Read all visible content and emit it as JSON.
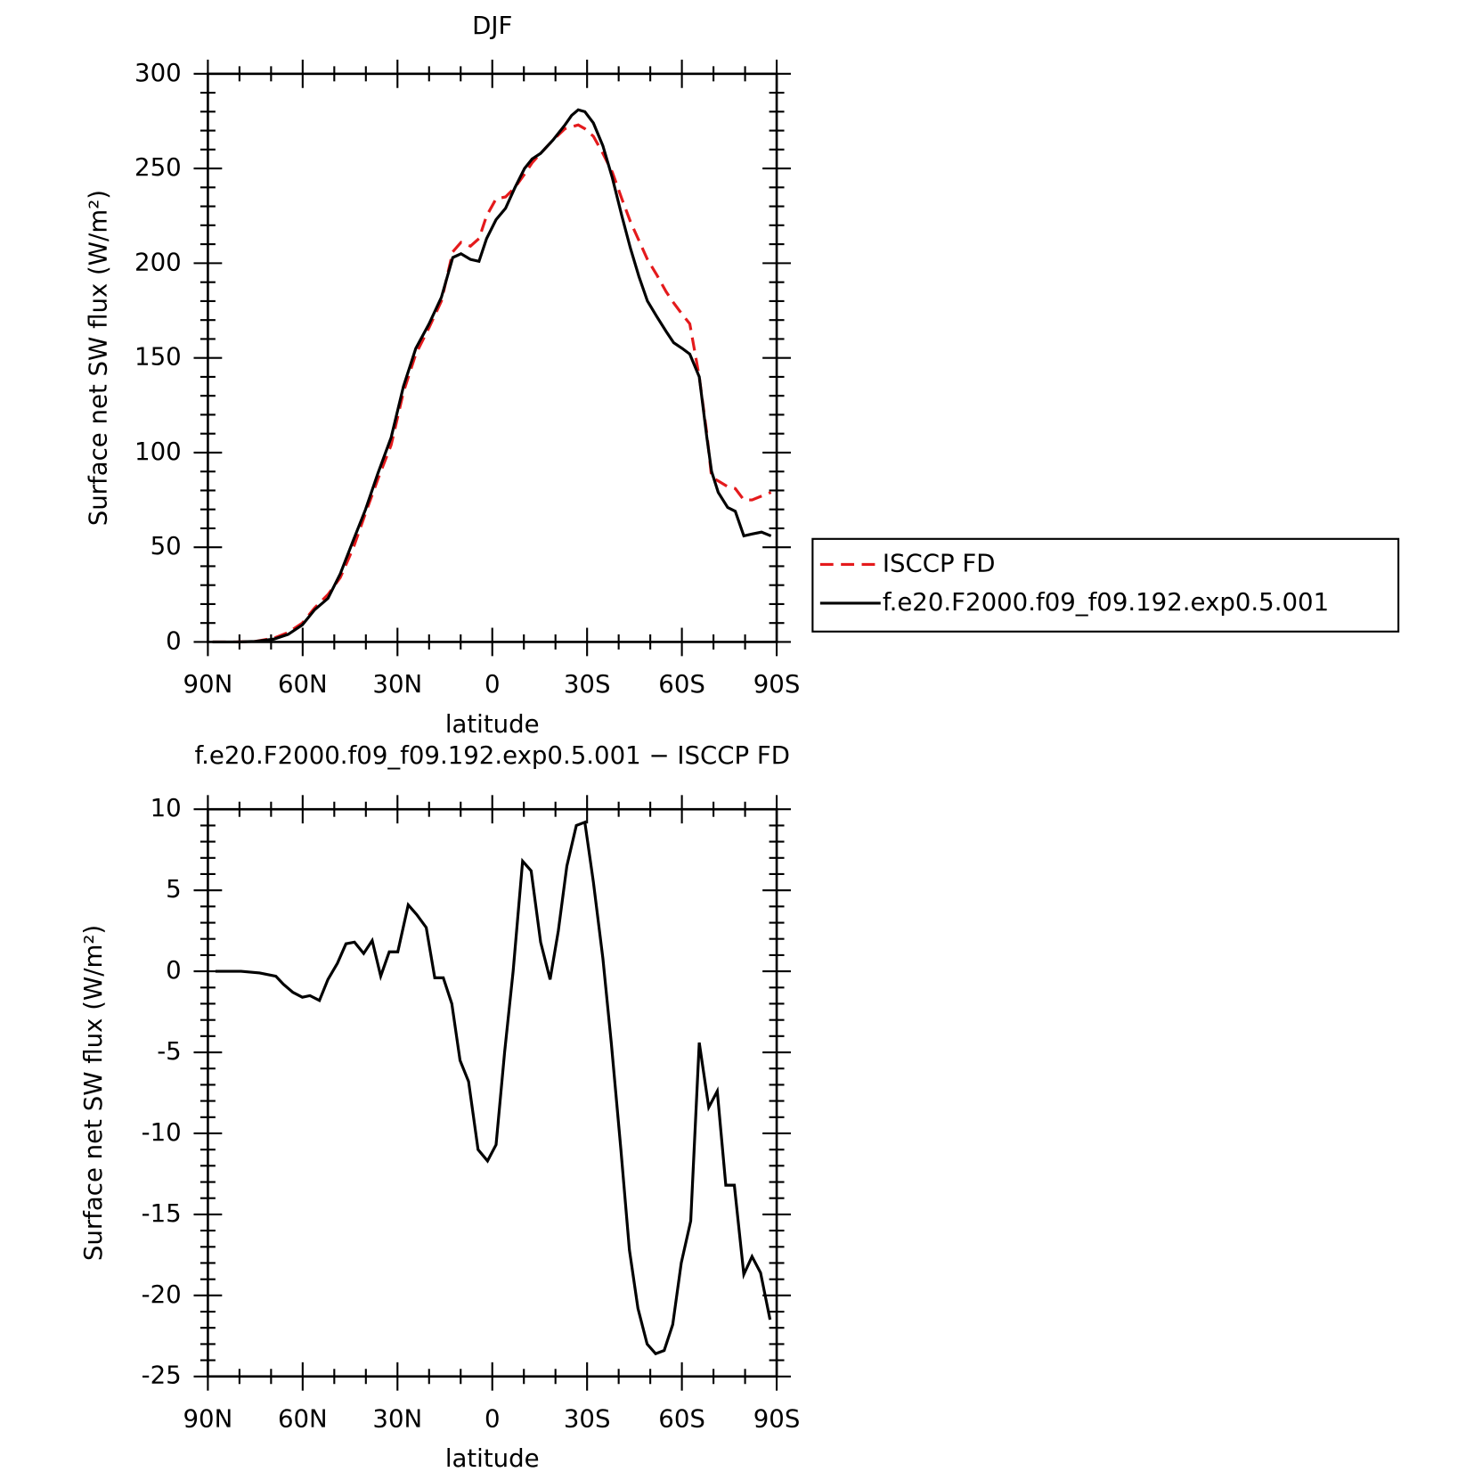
{
  "chart_data": [
    {
      "type": "line",
      "title": "DJF",
      "xlabel": "latitude",
      "ylabel": "Surface net SW flux (W/m²)",
      "x": [
        88.5,
        81,
        75,
        69.1,
        64.6,
        60.1,
        56.2,
        52,
        48.1,
        43.9,
        40.1,
        36.2,
        32,
        28.1,
        24.2,
        20,
        16.1,
        12.5,
        9.9,
        6.9,
        4.2,
        1.8,
        -1.2,
        -4.2,
        -7.2,
        -10.2,
        -12.6,
        -15.3,
        -19.2,
        -23,
        -25.1,
        -27.2,
        -29.3,
        -32,
        -35,
        -38,
        -41,
        -43.7,
        -46.4,
        -49.1,
        -52,
        -55,
        -57.4,
        -60.1,
        -62.5,
        -65.5,
        -67.9,
        -69.4,
        -71.5,
        -74.5,
        -76.9,
        -79.6,
        -82.2,
        -85.2,
        -88.2
      ],
      "series": [
        {
          "name": "ISCCP FD",
          "color": "#e41a1c",
          "linestyle": "dashed",
          "values": [
            0,
            0,
            0.3,
            2,
            5,
            10,
            18,
            25,
            34,
            50,
            68,
            86,
            104,
            132,
            152,
            166,
            180,
            206,
            211,
            209,
            213,
            225,
            234,
            235,
            240,
            247,
            253,
            258,
            265,
            271,
            272,
            273,
            271,
            267,
            258,
            248,
            234,
            222,
            212,
            202,
            194,
            185,
            179,
            173,
            168,
            140,
            110,
            87,
            85,
            82,
            81,
            75,
            75,
            77,
            79
          ]
        },
        {
          "name": "f.e20.F2000.f09_f09.192.exp0.5.001",
          "color": "#000000",
          "linestyle": "solid",
          "values": [
            0,
            0,
            0.3,
            1.5,
            4,
            9,
            17,
            23,
            36,
            54,
            70,
            89,
            108,
            135,
            155,
            168,
            182,
            203,
            205,
            202,
            201,
            213,
            223,
            229,
            240,
            250,
            255,
            258,
            265,
            273,
            278,
            281,
            280,
            274,
            262,
            245,
            225,
            208,
            193,
            180,
            172,
            164,
            158,
            155,
            152,
            140,
            108,
            90,
            79,
            71,
            69,
            56,
            57,
            58,
            56
          ]
        }
      ],
      "xlim": [
        90,
        -90
      ],
      "xticks": [
        {
          "value": 90,
          "label": "90N"
        },
        {
          "value": 60,
          "label": "60N"
        },
        {
          "value": 30,
          "label": "30N"
        },
        0,
        {
          "value": -30,
          "label": "30S"
        },
        {
          "value": -60,
          "label": "60S"
        },
        {
          "value": -90,
          "label": "90S"
        }
      ],
      "xminorticks": [
        80,
        70,
        50,
        40,
        20,
        10,
        -10,
        -20,
        -40,
        -50,
        -70,
        -80
      ],
      "ylim": [
        0,
        300
      ],
      "yticks": [
        0,
        50,
        100,
        150,
        200,
        250,
        300
      ],
      "yminorticks": [
        10,
        20,
        30,
        40,
        60,
        70,
        80,
        90,
        110,
        120,
        130,
        140,
        160,
        170,
        180,
        190,
        210,
        220,
        230,
        240,
        260,
        270,
        280,
        290
      ],
      "legend": "right"
    },
    {
      "type": "line",
      "title": "f.e20.F2000.f09_f09.192.exp0.5.001 − ISCCP FD",
      "xlabel": "latitude",
      "ylabel": "Surface net SW flux (W/m²)",
      "x": [
        87.6,
        79.5,
        73.6,
        68.5,
        66.1,
        63.1,
        60.1,
        57.7,
        54.7,
        52,
        49,
        46.3,
        43.6,
        40.7,
        38,
        35.3,
        32.6,
        29.9,
        26.6,
        23.9,
        20.9,
        18.2,
        15.5,
        12.8,
        10.2,
        7.5,
        4.5,
        1.5,
        -1.2,
        -3.9,
        -6.6,
        -9.6,
        -12.3,
        -15.3,
        -18.3,
        -20.9,
        -23.6,
        -26.6,
        -29.3,
        -32,
        -35,
        -37.7,
        -40.7,
        -43.4,
        -46.1,
        -49,
        -51.7,
        -54.4,
        -57.1,
        -59.8,
        -62.8,
        -65.5,
        -68.5,
        -71.2,
        -73.9,
        -76.6,
        -79.6,
        -82.2,
        -84.9,
        -87.9
      ],
      "series": [
        {
          "name": "f.e20.F2000.f09_f09.192.exp0.5.001 − ISCCP FD",
          "color": "#000000",
          "linestyle": "solid",
          "values": [
            0,
            0,
            -0.1,
            -0.3,
            -0.8,
            -1.3,
            -1.6,
            -1.5,
            -1.8,
            -0.5,
            0.5,
            1.7,
            1.8,
            1.1,
            1.9,
            -0.3,
            1.2,
            1.2,
            4.1,
            3.5,
            2.7,
            -0.4,
            -0.4,
            -2,
            -5.5,
            -6.8,
            -11,
            -11.7,
            -10.7,
            -5,
            0,
            6.8,
            6.2,
            1.8,
            -0.5,
            2.5,
            6.5,
            9,
            9.2,
            5.5,
            0.8,
            -4.5,
            -11,
            -17.2,
            -20.8,
            -23,
            -23.6,
            -23.4,
            -21.8,
            -18,
            -15.4,
            -4.4,
            -8.4,
            -7.4,
            -13.2,
            -13.2,
            -18.7,
            -17.6,
            -18.6,
            -21.5
          ]
        }
      ],
      "xlim": [
        90,
        -90
      ],
      "xticks": [
        {
          "value": 90,
          "label": "90N"
        },
        {
          "value": 60,
          "label": "60N"
        },
        {
          "value": 30,
          "label": "30N"
        },
        0,
        {
          "value": -30,
          "label": "30S"
        },
        {
          "value": -60,
          "label": "60S"
        },
        {
          "value": -90,
          "label": "90S"
        }
      ],
      "xminorticks": [
        80,
        70,
        50,
        40,
        20,
        10,
        -10,
        -20,
        -40,
        -50,
        -70,
        -80
      ],
      "ylim": [
        -25,
        10
      ],
      "yticks": [
        -25,
        -20,
        -15,
        -10,
        -5,
        0,
        5,
        10
      ],
      "yminorticks": [
        -24,
        -23,
        -22,
        -21,
        -19,
        -18,
        -17,
        -16,
        -14,
        -13,
        -12,
        -11,
        -9,
        -8,
        -7,
        -6,
        -4,
        -3,
        -2,
        -1,
        1,
        2,
        3,
        4,
        6,
        7,
        8,
        9
      ]
    }
  ]
}
